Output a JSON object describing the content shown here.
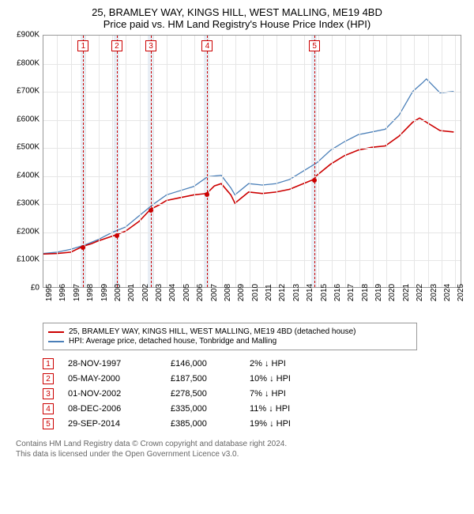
{
  "title_line1": "25, BRAMLEY WAY, KINGS HILL, WEST MALLING, ME19 4BD",
  "title_line2": "Price paid vs. HM Land Registry's House Price Index (HPI)",
  "chart": {
    "type": "line",
    "background_color": "#ffffff",
    "grid_color": "#e6e6e6",
    "x_min": 1995,
    "x_max": 2025.5,
    "y_min": 0,
    "y_max": 900000,
    "y_ticks": [
      0,
      100000,
      200000,
      300000,
      400000,
      500000,
      600000,
      700000,
      800000,
      900000
    ],
    "y_tick_labels": [
      "£0",
      "£100K",
      "£200K",
      "£300K",
      "£400K",
      "£500K",
      "£600K",
      "£700K",
      "£800K",
      "£900K"
    ],
    "x_ticks": [
      1995,
      1996,
      1997,
      1998,
      1999,
      2000,
      2001,
      2002,
      2003,
      2004,
      2005,
      2006,
      2007,
      2008,
      2009,
      2010,
      2011,
      2012,
      2013,
      2014,
      2015,
      2016,
      2017,
      2018,
      2019,
      2020,
      2021,
      2022,
      2023,
      2024,
      2025
    ],
    "shade_bands": [
      {
        "x_start": 1997.7,
        "x_end": 1998.1
      },
      {
        "x_start": 2000.1,
        "x_end": 2000.5
      },
      {
        "x_start": 2002.6,
        "x_end": 2003.0
      },
      {
        "x_start": 2006.7,
        "x_end": 2007.1
      },
      {
        "x_start": 2014.5,
        "x_end": 2014.9
      }
    ],
    "series_red": {
      "color": "#cc0000",
      "width": 1.6,
      "points": [
        [
          1995,
          118000
        ],
        [
          1996,
          120000
        ],
        [
          1997,
          125000
        ],
        [
          1997.9,
          146000
        ],
        [
          1998.5,
          155000
        ],
        [
          1999,
          165000
        ],
        [
          2000.35,
          187500
        ],
        [
          2001,
          200000
        ],
        [
          2002,
          235000
        ],
        [
          2002.83,
          278500
        ],
        [
          2003.5,
          295000
        ],
        [
          2004,
          310000
        ],
        [
          2005,
          320000
        ],
        [
          2006,
          330000
        ],
        [
          2006.94,
          335000
        ],
        [
          2007.5,
          362000
        ],
        [
          2008,
          370000
        ],
        [
          2008.7,
          330000
        ],
        [
          2009,
          300000
        ],
        [
          2010,
          340000
        ],
        [
          2011,
          335000
        ],
        [
          2012,
          340000
        ],
        [
          2013,
          350000
        ],
        [
          2014,
          370000
        ],
        [
          2014.75,
          385000
        ],
        [
          2015,
          400000
        ],
        [
          2016,
          440000
        ],
        [
          2017,
          470000
        ],
        [
          2018,
          490000
        ],
        [
          2019,
          500000
        ],
        [
          2020,
          505000
        ],
        [
          2021,
          540000
        ],
        [
          2022,
          590000
        ],
        [
          2022.5,
          605000
        ],
        [
          2023,
          590000
        ],
        [
          2024,
          560000
        ],
        [
          2025,
          555000
        ]
      ]
    },
    "series_blue": {
      "color": "#4a7fb8",
      "width": 1.3,
      "points": [
        [
          1995,
          120000
        ],
        [
          1996,
          125000
        ],
        [
          1997,
          135000
        ],
        [
          1998,
          150000
        ],
        [
          1999,
          170000
        ],
        [
          2000,
          195000
        ],
        [
          2001,
          215000
        ],
        [
          2002,
          255000
        ],
        [
          2003,
          295000
        ],
        [
          2004,
          330000
        ],
        [
          2005,
          345000
        ],
        [
          2006,
          360000
        ],
        [
          2007,
          395000
        ],
        [
          2008,
          400000
        ],
        [
          2008.7,
          355000
        ],
        [
          2009,
          330000
        ],
        [
          2010,
          370000
        ],
        [
          2011,
          365000
        ],
        [
          2012,
          370000
        ],
        [
          2013,
          385000
        ],
        [
          2014,
          415000
        ],
        [
          2015,
          445000
        ],
        [
          2016,
          490000
        ],
        [
          2017,
          520000
        ],
        [
          2018,
          545000
        ],
        [
          2019,
          555000
        ],
        [
          2020,
          565000
        ],
        [
          2021,
          615000
        ],
        [
          2022,
          700000
        ],
        [
          2022.7,
          730000
        ],
        [
          2023,
          745000
        ],
        [
          2023.5,
          720000
        ],
        [
          2024,
          695000
        ],
        [
          2025,
          700000
        ]
      ]
    },
    "markers": [
      {
        "n": "1",
        "x": 1997.9,
        "y": 146000
      },
      {
        "n": "2",
        "x": 2000.35,
        "y": 187500
      },
      {
        "n": "3",
        "x": 2002.83,
        "y": 278500
      },
      {
        "n": "4",
        "x": 2006.94,
        "y": 335000
      },
      {
        "n": "5",
        "x": 2014.75,
        "y": 385000
      }
    ]
  },
  "legend": {
    "items": [
      {
        "color": "#cc0000",
        "label": "25, BRAMLEY WAY, KINGS HILL, WEST MALLING, ME19 4BD (detached house)"
      },
      {
        "color": "#4a7fb8",
        "label": "HPI: Average price, detached house, Tonbridge and Malling"
      }
    ]
  },
  "transactions": [
    {
      "n": "1",
      "date": "28-NOV-1997",
      "price": "£146,000",
      "diff": "2% ↓ HPI"
    },
    {
      "n": "2",
      "date": "05-MAY-2000",
      "price": "£187,500",
      "diff": "10% ↓ HPI"
    },
    {
      "n": "3",
      "date": "01-NOV-2002",
      "price": "£278,500",
      "diff": "7% ↓ HPI"
    },
    {
      "n": "4",
      "date": "08-DEC-2006",
      "price": "£335,000",
      "diff": "11% ↓ HPI"
    },
    {
      "n": "5",
      "date": "29-SEP-2014",
      "price": "£385,000",
      "diff": "19% ↓ HPI"
    }
  ],
  "footer_line1": "Contains HM Land Registry data © Crown copyright and database right 2024.",
  "footer_line2": "This data is licensed under the Open Government Licence v3.0."
}
